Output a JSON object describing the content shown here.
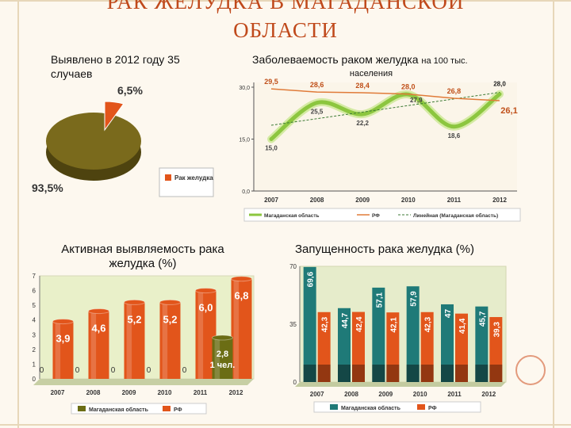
{
  "slide": {
    "title_line1": "РАК ЖЕЛУДКА В МАГАДАНСКОЙ",
    "title_line2": "ОБЛАСТИ"
  },
  "captions": {
    "detected_line1": "Выявлено в 2012 году 35",
    "detected_line2": "случаев",
    "incidence_bold": "Заболеваемость",
    "incidence_rest": " раком желудка ",
    "incidence_small": "на 100 тыс.",
    "incidence_line2": "населения",
    "active_bold": "Активная выявляемость",
    "active_rest": " рака",
    "active_line2": "желудка (%)",
    "neglect_bold": "Запущенность",
    "neglect_rest": " рака желудка (%)"
  },
  "colors": {
    "pie_main": "#7a6a1c",
    "pie_slice": "#e2551b",
    "regional_bar": "#6b6d14",
    "rf_bar": "#e2551b",
    "line_region": "#8cc63f",
    "line_rf": "#e07b39",
    "teal_bar": "#1f7a78"
  },
  "chart_data": [
    {
      "type": "pie",
      "labels": [
        "Рак желудка",
        ""
      ],
      "values": [
        6.5,
        93.5
      ],
      "value_labels": [
        "6,5%",
        "93,5%"
      ],
      "legend": [
        "Рак желудка"
      ],
      "legend_position": "right"
    },
    {
      "type": "line",
      "categories": [
        "2007",
        "2008",
        "2009",
        "2010",
        "2011",
        "2012"
      ],
      "series": [
        {
          "name": "Магаданская область",
          "values": [
            15.0,
            25.5,
            22.2,
            27.9,
            18.6,
            28.0
          ]
        },
        {
          "name": "РФ",
          "values": [
            29.5,
            28.6,
            28.4,
            28.0,
            26.8,
            26.1
          ]
        },
        {
          "name": "Линейная (Магаданская область)",
          "values": [
            19.0,
            20.9,
            22.8,
            24.7,
            26.6,
            28.5
          ]
        }
      ],
      "value_labels_region": [
        "15,0",
        "25,5",
        "22,2",
        "27,9",
        "18,6",
        "28,0"
      ],
      "value_labels_rf": [
        "29,5",
        "28,6",
        "28,4",
        "28,0",
        "26,8",
        "26,1"
      ],
      "ytick_labels": [
        "0,0",
        "15,0",
        "30,0"
      ],
      "ylim": [
        0,
        30
      ],
      "legend_position": "bottom"
    },
    {
      "type": "bar",
      "categories": [
        "2007",
        "2008",
        "2009",
        "2010",
        "2011",
        "2012"
      ],
      "series": [
        {
          "name": "Магаданская область",
          "values": [
            0,
            0,
            0,
            0,
            0,
            2.8
          ]
        },
        {
          "name": "РФ",
          "values": [
            3.9,
            4.6,
            5.2,
            5.2,
            6.0,
            6.8
          ]
        }
      ],
      "value_labels_region": [
        "0",
        "0",
        "0",
        "0",
        "0",
        "2,8"
      ],
      "value_labels_rf": [
        "3,9",
        "4,6",
        "5,2",
        "5,2",
        "6,0",
        "6,8"
      ],
      "annotation": "1 чел.",
      "ytick_labels": [
        "0",
        "1",
        "2",
        "3",
        "4",
        "5",
        "6",
        "7"
      ],
      "ylim": [
        0,
        7
      ],
      "legend_position": "bottom"
    },
    {
      "type": "bar",
      "categories": [
        "2007",
        "2008",
        "2009",
        "2010",
        "2011",
        "2012"
      ],
      "series": [
        {
          "name": "Магаданская область",
          "values": [
            69.6,
            44.7,
            57.1,
            57.9,
            47,
            45.7
          ]
        },
        {
          "name": "РФ",
          "values": [
            42.3,
            42.4,
            42.1,
            42.3,
            41.4,
            39.3
          ]
        }
      ],
      "value_labels_region": [
        "69,6",
        "44,7",
        "57,1",
        "57,9",
        "47",
        "45,7"
      ],
      "value_labels_rf": [
        "42,3",
        "42,4",
        "42,1",
        "42,3",
        "41,4",
        "39,3"
      ],
      "ytick_labels": [
        "0",
        "35",
        "70"
      ],
      "ylim": [
        0,
        70
      ],
      "legend_position": "bottom"
    }
  ]
}
